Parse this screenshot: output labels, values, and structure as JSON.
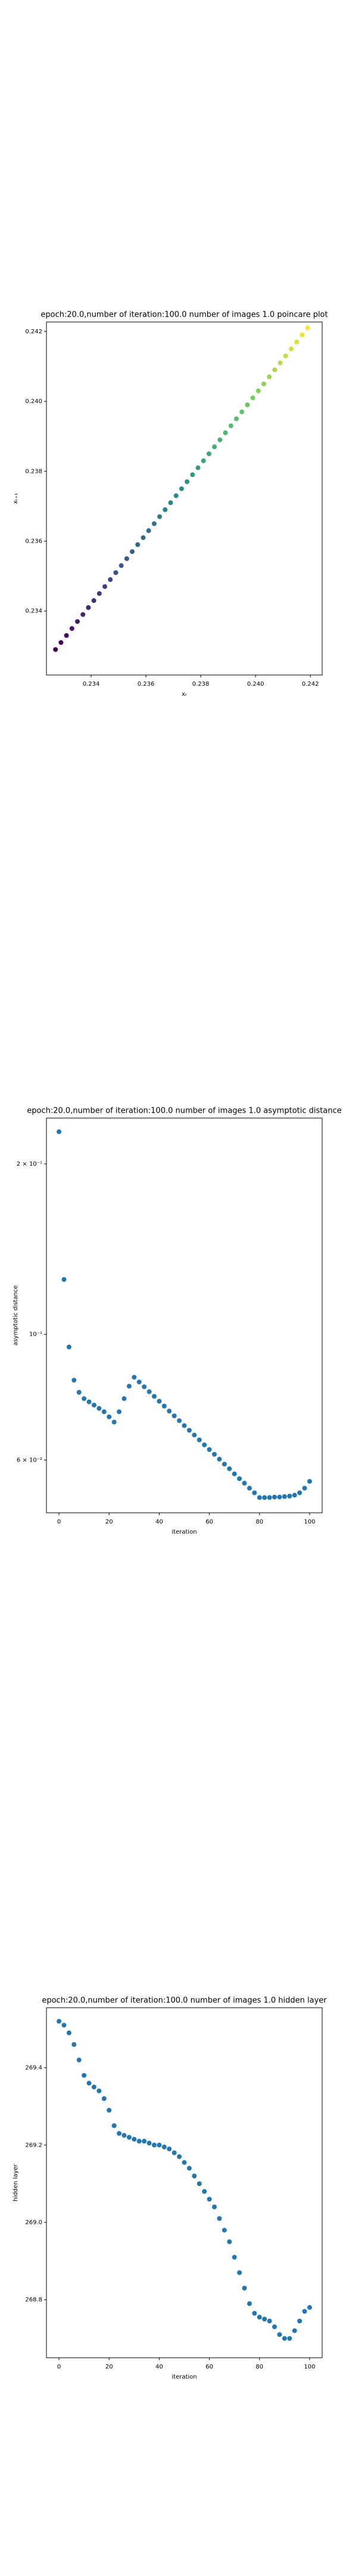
{
  "chart_data": [
    {
      "type": "scatter",
      "title": "epoch:20.0,number of iteration:100.0 number of images 1.0 poincare plot",
      "xlabel": "xₜ",
      "ylabel": "xₜ₊₁",
      "colormap": "viridis",
      "x": [
        0.2327,
        0.2329,
        0.2331,
        0.2333,
        0.2335,
        0.2337,
        0.2339,
        0.2341,
        0.2343,
        0.2345,
        0.2347,
        0.2349,
        0.2351,
        0.2353,
        0.2355,
        0.2357,
        0.2359,
        0.2361,
        0.2363,
        0.2365,
        0.2367,
        0.2369,
        0.2371,
        0.2373,
        0.2375,
        0.2377,
        0.2379,
        0.2381,
        0.2383,
        0.2385,
        0.2387,
        0.2389,
        0.2391,
        0.2393,
        0.2395,
        0.2397,
        0.2399,
        0.2401,
        0.2403,
        0.2405,
        0.2407,
        0.2409,
        0.2411,
        0.2413,
        0.2415,
        0.2417,
        0.2419
      ],
      "values": [
        0.2329,
        0.2331,
        0.2333,
        0.2335,
        0.2337,
        0.2339,
        0.2341,
        0.2343,
        0.2345,
        0.2347,
        0.2349,
        0.2351,
        0.2353,
        0.2355,
        0.2357,
        0.2359,
        0.2361,
        0.2363,
        0.2365,
        0.2367,
        0.2369,
        0.2371,
        0.2373,
        0.2375,
        0.2377,
        0.2379,
        0.2381,
        0.2383,
        0.2385,
        0.2387,
        0.2389,
        0.2391,
        0.2393,
        0.2395,
        0.2397,
        0.2399,
        0.2401,
        0.2403,
        0.2405,
        0.2407,
        0.2409,
        0.2411,
        0.2413,
        0.2415,
        0.2417,
        0.2419,
        0.2421
      ],
      "xlim": [
        0.23237,
        0.24243
      ],
      "xticks": [
        0.234,
        0.236,
        0.238,
        {
          "value": 0.24,
          "label": "0.240"
        },
        0.242
      ],
      "ylim": [
        0.23217,
        0.24227
      ],
      "yticks": [
        0.234,
        0.236,
        0.238,
        {
          "value": 0.24,
          "label": "0.240"
        },
        0.242
      ]
    },
    {
      "type": "scatter",
      "title": "epoch:20.0,number of iteration:100.0  number of images 1.0 asymptotic distance",
      "xlabel": "iteration",
      "ylabel": "asymptotic distance",
      "color": "#1f77b4",
      "yscale": "log",
      "x": [
        0,
        2,
        4,
        6,
        8,
        10,
        12,
        14,
        16,
        18,
        20,
        22,
        24,
        26,
        28,
        30,
        32,
        34,
        36,
        38,
        40,
        42,
        44,
        46,
        48,
        50,
        52,
        54,
        56,
        58,
        60,
        62,
        64,
        66,
        68,
        70,
        72,
        74,
        76,
        78,
        80,
        82,
        84,
        86,
        88,
        90,
        92,
        94,
        96,
        98,
        100
      ],
      "values": [
        0.228,
        0.125,
        0.095,
        0.083,
        0.079,
        0.077,
        0.076,
        0.075,
        0.074,
        0.073,
        0.0715,
        0.07,
        0.073,
        0.077,
        0.081,
        0.084,
        0.0824,
        0.0808,
        0.0792,
        0.0777,
        0.0762,
        0.0747,
        0.0732,
        0.0718,
        0.0704,
        0.069,
        0.0677,
        0.0664,
        0.0651,
        0.0638,
        0.0626,
        0.0614,
        0.0602,
        0.059,
        0.0579,
        0.0567,
        0.0556,
        0.0546,
        0.0535,
        0.0525,
        0.0515,
        0.0515,
        0.0515,
        0.0516,
        0.0516,
        0.0517,
        0.0518,
        0.052,
        0.0525,
        0.0535,
        0.055
      ],
      "xlim": [
        -5,
        105
      ],
      "xticks": [
        0,
        20,
        40,
        60,
        80,
        100
      ],
      "ylim": [
        0.0484,
        0.241
      ],
      "yticks": [
        {
          "value": 0.06,
          "label": "6 × 10⁻²"
        },
        {
          "value": 0.1,
          "label": "10⁻¹"
        },
        {
          "value": 0.2,
          "label": "2 × 10⁻¹"
        }
      ]
    },
    {
      "type": "scatter",
      "title": "epoch:20.0,number of iteration:100.0  number of images 1.0 hidden layer",
      "xlabel": "iteration",
      "ylabel": "hidden layer",
      "color": "#1f77b4",
      "x": [
        0,
        2,
        4,
        6,
        8,
        10,
        12,
        14,
        16,
        18,
        20,
        22,
        24,
        26,
        28,
        30,
        32,
        34,
        36,
        38,
        40,
        42,
        44,
        46,
        48,
        50,
        52,
        54,
        56,
        58,
        60,
        62,
        64,
        66,
        68,
        70,
        72,
        74,
        76,
        78,
        80,
        82,
        84,
        86,
        88,
        90,
        92,
        94,
        96,
        98,
        100
      ],
      "values": [
        269.52,
        269.51,
        269.49,
        269.46,
        269.42,
        269.38,
        269.36,
        269.35,
        269.34,
        269.32,
        269.29,
        269.25,
        269.23,
        269.225,
        269.22,
        269.215,
        269.21,
        269.21,
        269.205,
        269.2,
        269.2,
        269.195,
        269.19,
        269.18,
        269.17,
        269.155,
        269.14,
        269.12,
        269.1,
        269.08,
        269.06,
        269.04,
        269.01,
        268.98,
        268.95,
        268.91,
        268.87,
        268.83,
        268.79,
        268.765,
        268.755,
        268.75,
        268.745,
        268.73,
        268.71,
        268.7,
        268.7,
        268.72,
        268.745,
        268.77,
        268.78
      ],
      "xlim": [
        -5,
        105
      ],
      "xticks": [
        0,
        20,
        40,
        60,
        80,
        100
      ],
      "ylim": [
        268.65,
        269.555
      ],
      "yticks": [
        268.8,
        {
          "value": 269,
          "label": "269.0"
        },
        269.2,
        269.4
      ]
    }
  ]
}
